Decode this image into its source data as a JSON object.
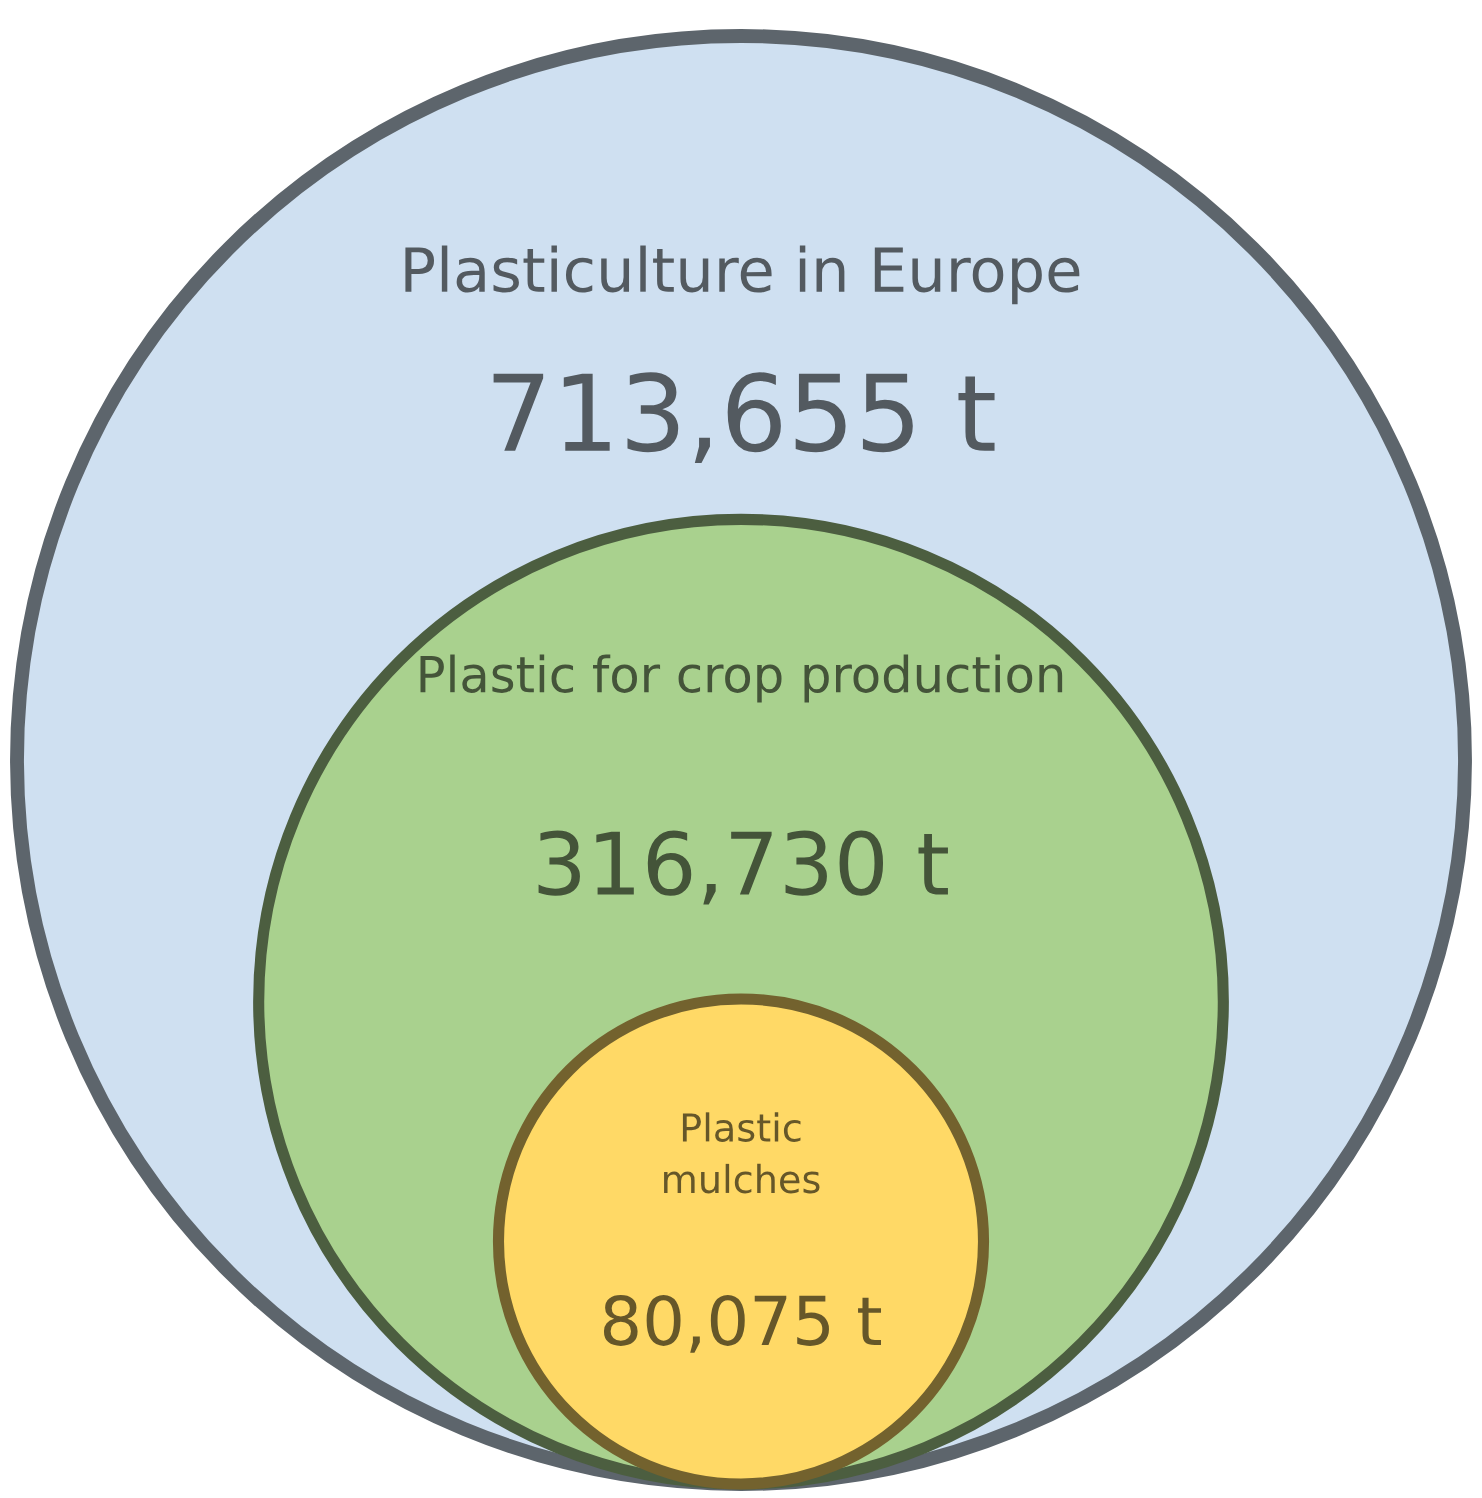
{
  "chart_data": {
    "type": "other",
    "categories": [
      "Plasticulture in Europe",
      "Plastic for crop production",
      "Plastic\nmulches"
    ],
    "values": [
      713655,
      316730,
      80075
    ],
    "value_labels": [
      "713,655 t",
      "316,730 t",
      "80,075 t"
    ],
    "colors": [
      "#cfe0f1",
      "#a9d18e",
      "#ffd966"
    ]
  }
}
